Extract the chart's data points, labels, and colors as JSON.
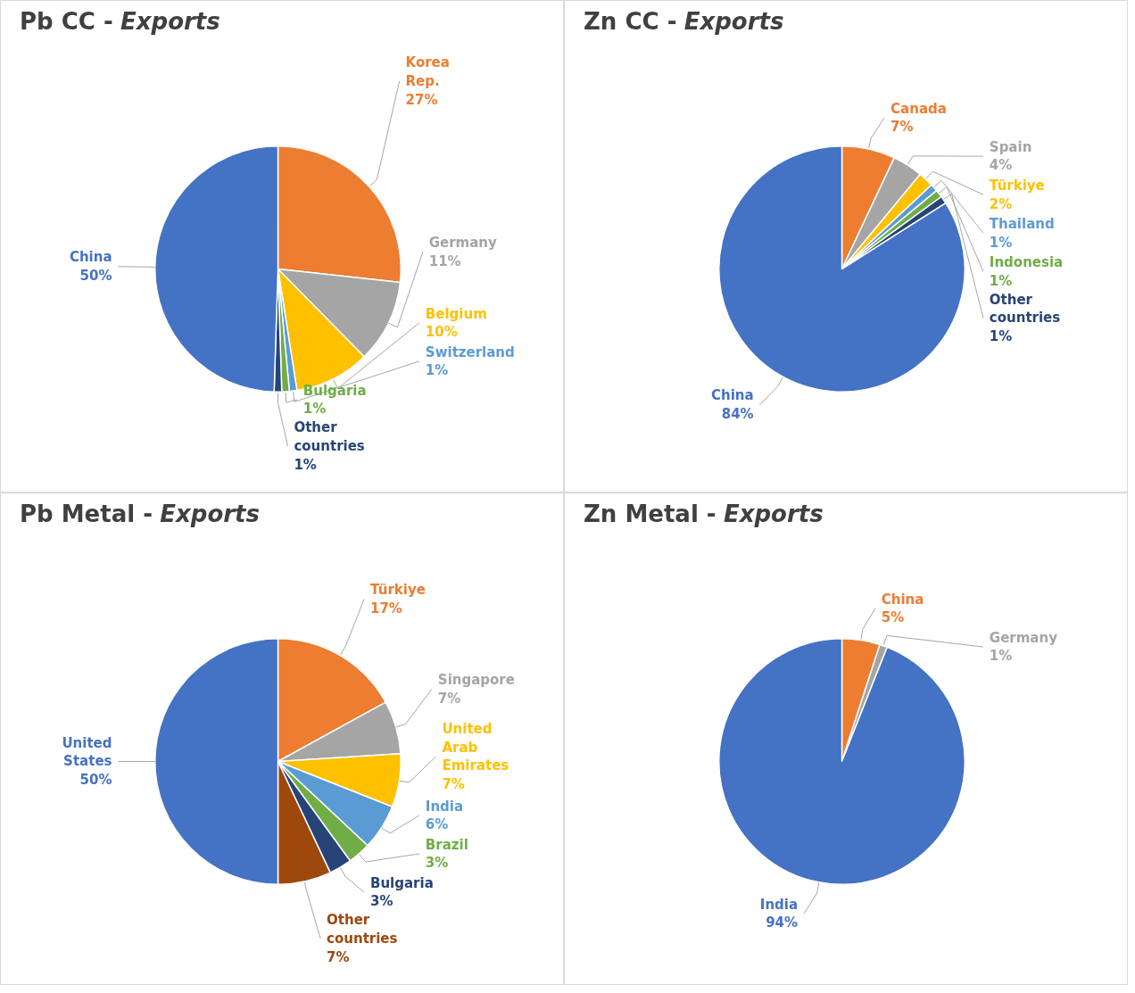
{
  "chart_data": [
    {
      "type": "pie",
      "title": "Pb CC - Exports",
      "categories": [
        "Korea Rep.",
        "Germany",
        "Belgium",
        "Switzerland",
        "Bulgaria",
        "Other countries",
        "China"
      ],
      "values": [
        27,
        11,
        10,
        1,
        1,
        1,
        50
      ],
      "value_labels": [
        "27%",
        "11%",
        "10%",
        "1%",
        "1%",
        "1%",
        "50%"
      ],
      "colors": [
        "#ed7d31",
        "#a5a5a5",
        "#ffc000",
        "#5b9bd5",
        "#70ad47",
        "#264478",
        "#4472c4"
      ],
      "legend": false
    },
    {
      "type": "pie",
      "title": "Zn CC - Exports",
      "categories": [
        "Canada",
        "Spain",
        "Türkiye",
        "Thailand",
        "Indonesia",
        "Other countries",
        "China"
      ],
      "values": [
        7,
        4,
        2,
        1,
        1,
        1,
        84
      ],
      "value_labels": [
        "7%",
        "4%",
        "2%",
        "1%",
        "1%",
        "1%",
        "84%"
      ],
      "colors": [
        "#ed7d31",
        "#a5a5a5",
        "#ffc000",
        "#5b9bd5",
        "#70ad47",
        "#264478",
        "#4472c4"
      ],
      "legend": false
    },
    {
      "type": "pie",
      "title": "Pb Metal - Exports",
      "categories": [
        "Türkiye",
        "Singapore",
        "United Arab Emirates",
        "India",
        "Brazil",
        "Bulgaria",
        "Other countries",
        "United States"
      ],
      "values": [
        17,
        7,
        7,
        6,
        3,
        3,
        7,
        50
      ],
      "value_labels": [
        "17%",
        "7%",
        "7%",
        "6%",
        "3%",
        "3%",
        "7%",
        "50%"
      ],
      "colors": [
        "#ed7d31",
        "#a5a5a5",
        "#ffc000",
        "#5b9bd5",
        "#70ad47",
        "#264478",
        "#9e480e",
        "#4472c4"
      ],
      "legend": false
    },
    {
      "type": "pie",
      "title": "Zn Metal - Exports",
      "categories": [
        "China",
        "Germany",
        "India"
      ],
      "values": [
        5,
        1,
        94
      ],
      "value_labels": [
        "5%",
        "1%",
        "94%"
      ],
      "colors": [
        "#ed7d31",
        "#a5a5a5",
        "#4472c4"
      ],
      "legend": false
    }
  ]
}
